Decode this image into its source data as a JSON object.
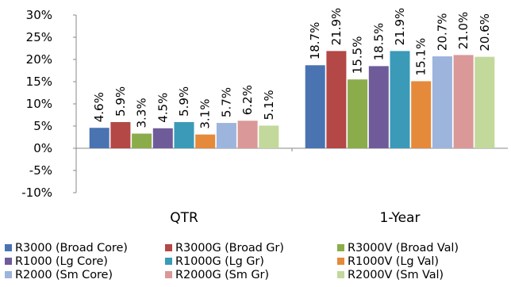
{
  "chart_data": {
    "type": "bar",
    "categories": [
      "QTR",
      "1-Year"
    ],
    "ylim": [
      -10,
      30
    ],
    "yticks": [
      -10,
      -5,
      0,
      5,
      10,
      15,
      20,
      25,
      30
    ],
    "ytick_labels": [
      "-10%",
      "-5%",
      "0%",
      "5%",
      "10%",
      "15%",
      "20%",
      "25%",
      "30%"
    ],
    "grid": false,
    "legend_position": "bottom",
    "series": [
      {
        "name": "R3000 (Broad Core)",
        "color": "#4a73b1",
        "values": [
          4.6,
          18.7
        ],
        "labels": [
          "4.6%",
          "18.7%"
        ]
      },
      {
        "name": "R3000G (Broad Gr)",
        "color": "#b34846",
        "values": [
          5.9,
          21.9
        ],
        "labels": [
          "5.9%",
          "21.9%"
        ]
      },
      {
        "name": "R3000V (Broad Val)",
        "color": "#8bac4a",
        "values": [
          3.3,
          15.5
        ],
        "labels": [
          "3.3%",
          "15.5%"
        ]
      },
      {
        "name": "R1000 (Lg Core)",
        "color": "#6f5b9a",
        "values": [
          4.5,
          18.5
        ],
        "labels": [
          "4.5%",
          "18.5%"
        ]
      },
      {
        "name": "R1000G (Lg Gr)",
        "color": "#3a9ab8",
        "values": [
          5.9,
          21.9
        ],
        "labels": [
          "5.9%",
          "21.9%"
        ]
      },
      {
        "name": "R1000V (Lg Val)",
        "color": "#e5893a",
        "values": [
          3.1,
          15.1
        ],
        "labels": [
          "3.1%",
          "15.1%"
        ]
      },
      {
        "name": "R2000 (Sm Core)",
        "color": "#9db4dc",
        "values": [
          5.7,
          20.7
        ],
        "labels": [
          "5.7%",
          "20.7%"
        ]
      },
      {
        "name": "R2000G (Sm Gr)",
        "color": "#da9898",
        "values": [
          6.2,
          21.0
        ],
        "labels": [
          "6.2%",
          "21.0%"
        ]
      },
      {
        "name": "R2000V (Sm Val)",
        "color": "#c3d89b",
        "values": [
          5.1,
          20.6
        ],
        "labels": [
          "5.1%",
          "20.6%"
        ]
      }
    ]
  }
}
